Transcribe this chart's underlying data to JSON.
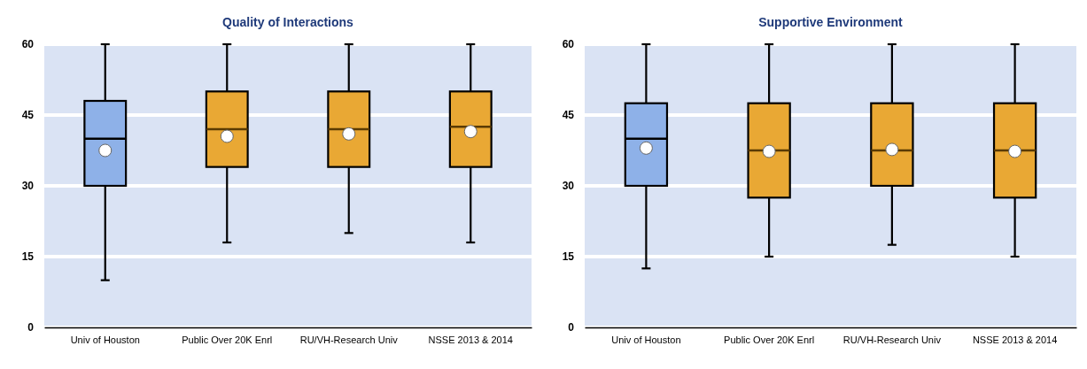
{
  "chart_data": [
    {
      "type": "box",
      "title": "Quality of Interactions",
      "categories": [
        "Univ of Houston",
        "Public Over 20K Enrl",
        "RU/VH-Research Univ",
        "NSSE 2013 & 2014"
      ],
      "colors": [
        "#8eb1e8",
        "#e9a834",
        "#e9a834",
        "#e9a834"
      ],
      "boxes": [
        {
          "low": 10,
          "q1": 30,
          "median": 40,
          "q3": 48,
          "high": 60,
          "mean": 37.5
        },
        {
          "low": 18,
          "q1": 34,
          "median": 42,
          "q3": 50,
          "high": 60,
          "mean": 40.5
        },
        {
          "low": 20,
          "q1": 34,
          "median": 42,
          "q3": 50,
          "high": 60,
          "mean": 41
        },
        {
          "low": 18,
          "q1": 34,
          "median": 42.5,
          "q3": 50,
          "high": 60,
          "mean": 41.5
        }
      ],
      "ylim": [
        0,
        60
      ],
      "yticks": [
        0,
        15,
        30,
        45,
        60
      ],
      "grid": "y"
    },
    {
      "type": "box",
      "title": "Supportive Environment",
      "categories": [
        "Univ of Houston",
        "Public Over 20K Enrl",
        "RU/VH-Research Univ",
        "NSSE 2013 & 2014"
      ],
      "colors": [
        "#8eb1e8",
        "#e9a834",
        "#e9a834",
        "#e9a834"
      ],
      "boxes": [
        {
          "low": 12.5,
          "q1": 30,
          "median": 40,
          "q3": 47.5,
          "high": 60,
          "mean": 38
        },
        {
          "low": 15,
          "q1": 27.5,
          "median": 37.5,
          "q3": 47.5,
          "high": 60,
          "mean": 37.3
        },
        {
          "low": 17.5,
          "q1": 30,
          "median": 37.5,
          "q3": 47.5,
          "high": 60,
          "mean": 37.7
        },
        {
          "low": 15,
          "q1": 27.5,
          "median": 37.5,
          "q3": 47.5,
          "high": 60,
          "mean": 37.3
        }
      ],
      "ylim": [
        0,
        60
      ],
      "yticks": [
        0,
        15,
        30,
        45,
        60
      ],
      "grid": "y"
    }
  ]
}
